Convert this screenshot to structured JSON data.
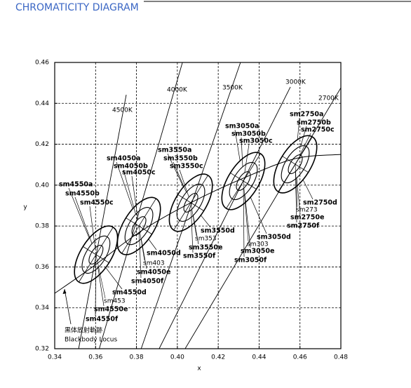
{
  "title": "CHROMATICITY DIAGRAM",
  "chart_data": {
    "type": "ellipse",
    "xlabel": "x",
    "ylabel": "y",
    "xlim": [
      0.34,
      0.48
    ],
    "ylim": [
      0.32,
      0.46
    ],
    "xticks": [
      0.34,
      0.36,
      0.38,
      {
        "value": 0.4,
        "label": "0.40"
      },
      0.42,
      0.44,
      0.46,
      0.48
    ],
    "yticks": [
      0.32,
      0.34,
      0.36,
      0.38,
      {
        "value": 0.4,
        "label": "0.40"
      },
      0.42,
      0.44,
      0.46
    ],
    "grid": true,
    "ellipse_major": [
      0.0052,
      0.0103,
      0.0158
    ],
    "ellipse_minor": [
      0.0024,
      0.0048,
      0.0075
    ],
    "ellipse_angle": 58,
    "locus": {
      "labels": [
        "黒体放射軌跡",
        "Blackbody Locus"
      ],
      "x": [
        0.34,
        0.3578,
        0.3819,
        0.4066,
        0.4323,
        0.4577,
        0.48
      ],
      "y": [
        0.3471,
        0.3595,
        0.3773,
        0.3914,
        0.4034,
        0.413,
        0.415
      ]
    },
    "isotherms": [
      {
        "name": "4500K",
        "x": [
          0.375,
          0.3517
        ],
        "y": [
          0.4442,
          0.32
        ]
      },
      {
        "name": "4000K",
        "x": [
          0.4025,
          0.3618
        ],
        "y": [
          0.46,
          0.32
        ]
      },
      {
        "name": "3500K",
        "x": [
          0.4309,
          0.3823
        ],
        "y": [
          0.46,
          0.32
        ]
      },
      {
        "name": "3000K",
        "x": [
          0.4553,
          0.3911
        ],
        "y": [
          0.448,
          0.32
        ]
      },
      {
        "name": "2700K",
        "x": [
          0.48,
          0.4038
        ],
        "y": [
          0.4476,
          0.32
        ]
      }
    ],
    "groups": [
      {
        "x": 0.3602,
        "y": 0.366,
        "center_label": "sm453",
        "labels": [
          "sm4550a",
          "sm4550b",
          "sm4550c",
          "sm4550d",
          "sm4550e",
          "sm4550f"
        ]
      },
      {
        "x": 0.3812,
        "y": 0.38,
        "center_label": "sm403",
        "labels": [
          "sm4050a",
          "sm4050b",
          "sm4050c",
          "sm4050d",
          "sm4050e",
          "sm4050f"
        ]
      },
      {
        "x": 0.4066,
        "y": 0.3914,
        "center_label": "sm353",
        "labels": [
          "sm3550a",
          "sm3550b",
          "sm3550c",
          "sm3550d",
          "sm3550e",
          "sm3550f"
        ]
      },
      {
        "x": 0.4323,
        "y": 0.402,
        "center_label": "sm303",
        "labels": [
          "sm3050a",
          "sm3050b",
          "sm3050c",
          "sm3050d",
          "sm3050e",
          "sm3050f"
        ]
      },
      {
        "x": 0.4577,
        "y": 0.4102,
        "center_label": "sm273",
        "labels": [
          "sm2750a",
          "sm2750b",
          "sm2750c",
          "sm2750d",
          "sm2750e",
          "sm2750f"
        ]
      }
    ]
  }
}
